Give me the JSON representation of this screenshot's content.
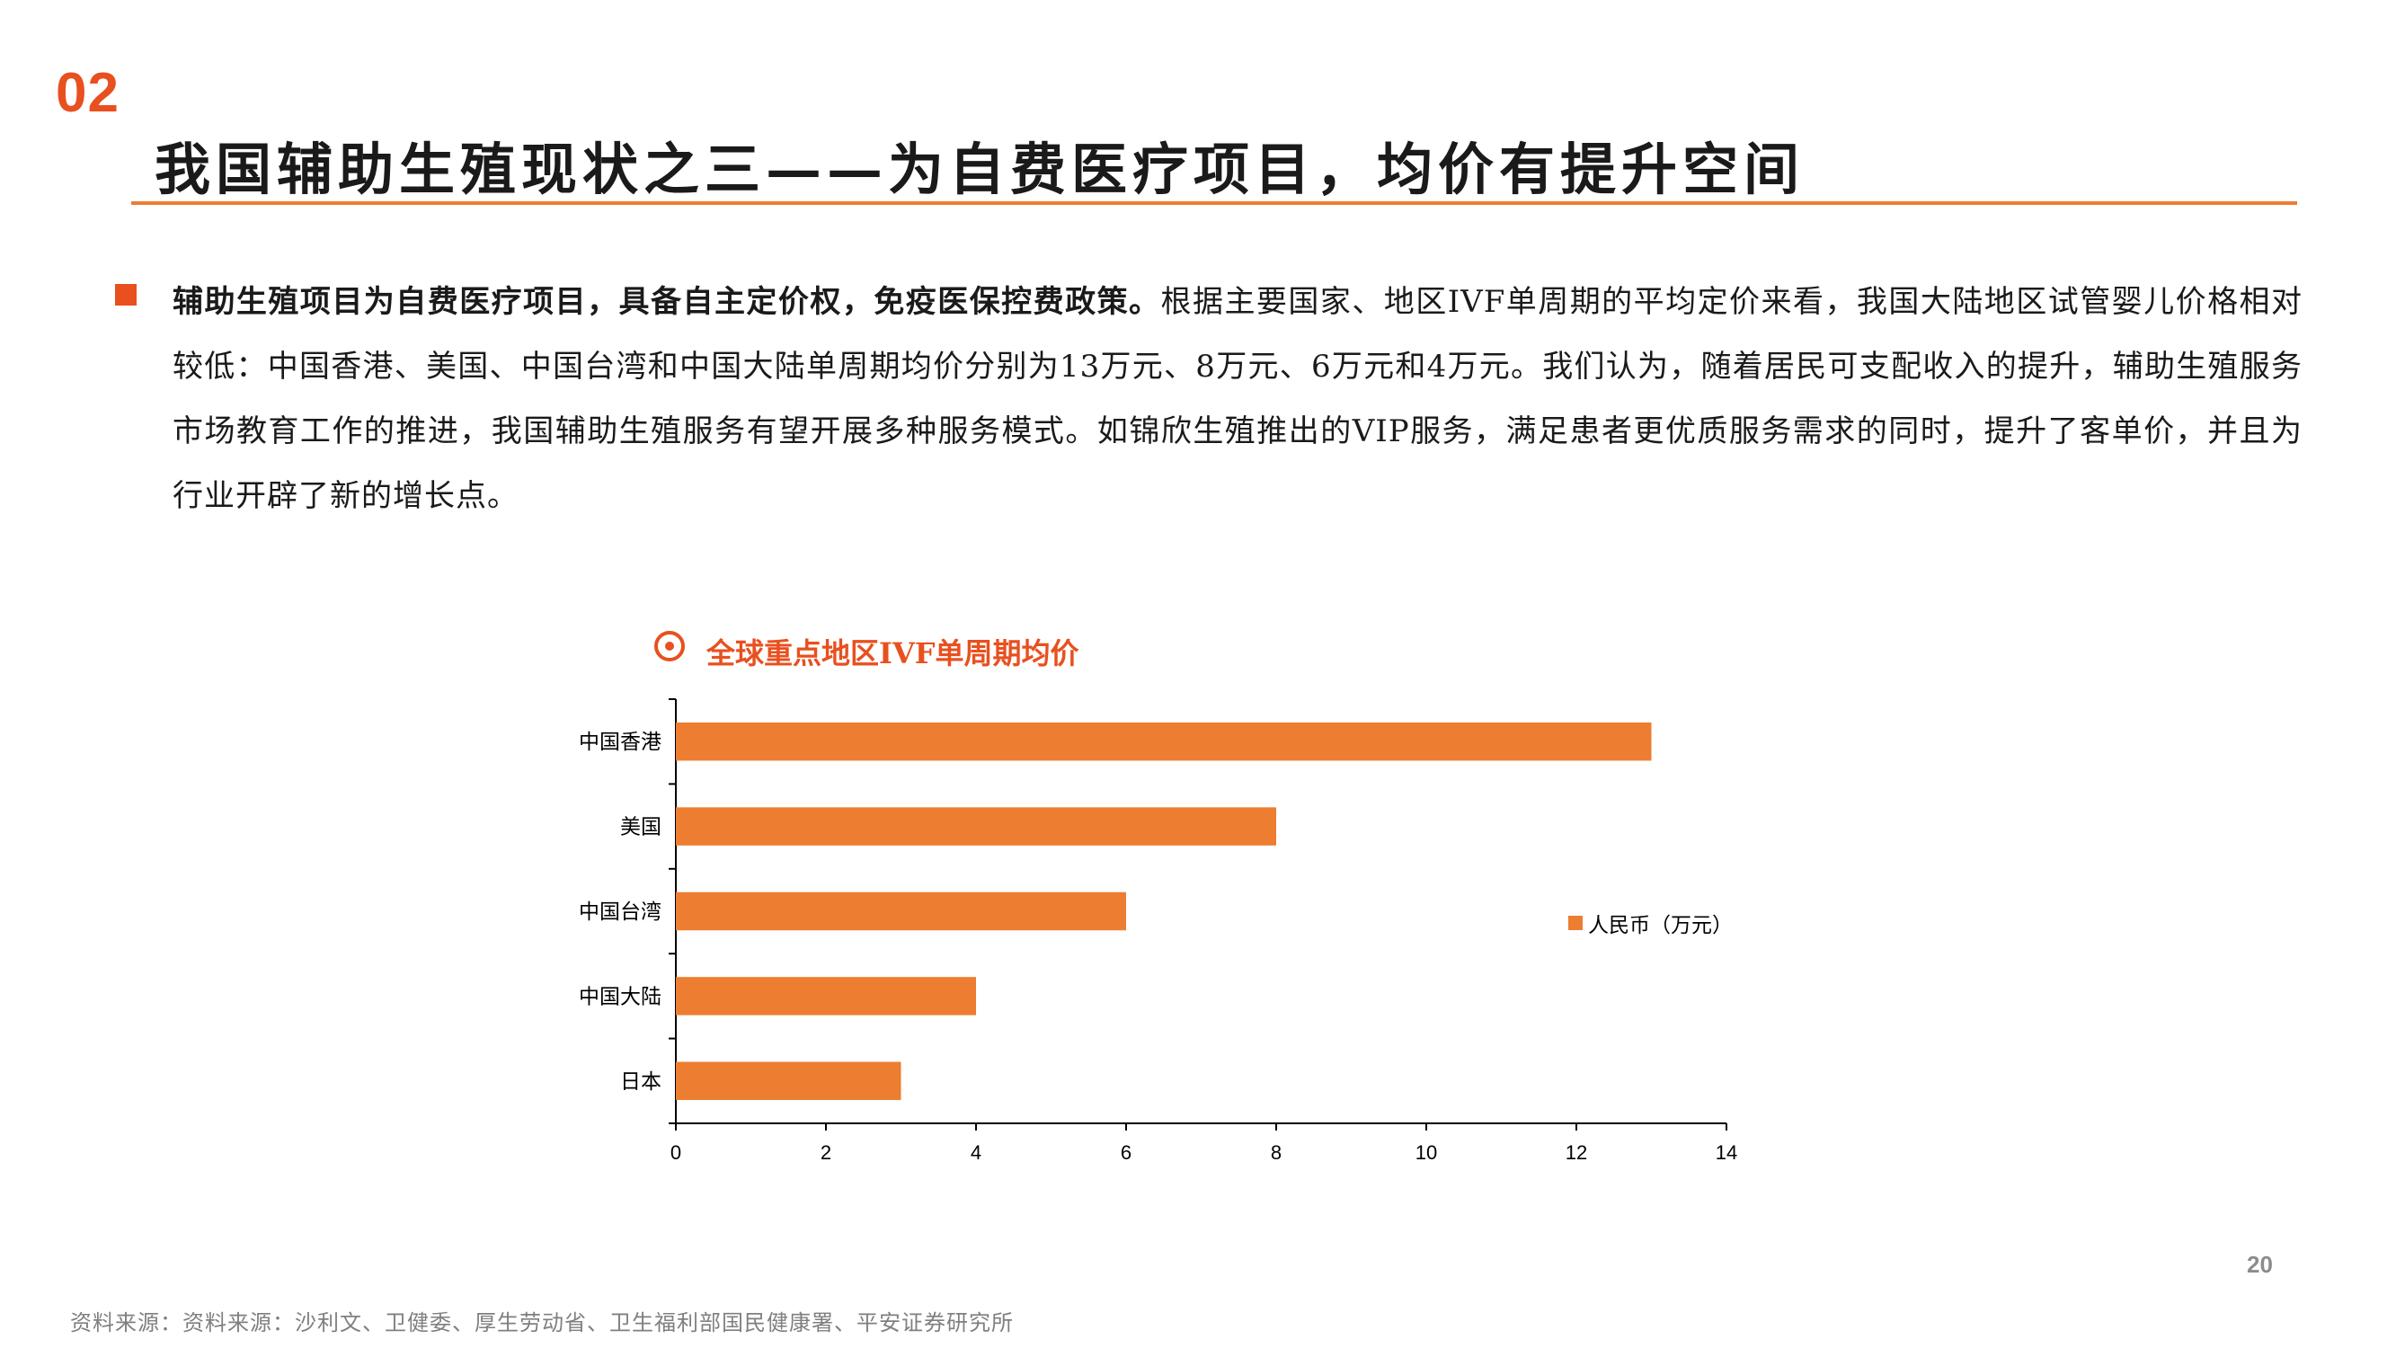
{
  "section_number": "02",
  "title": "我国辅助生殖现状之三——为自费医疗项目，均价有提升空间",
  "body": {
    "bold_lead": "辅助生殖项目为自费医疗项目，具备自主定价权，免疫医保控费政策。",
    "text": "根据主要国家、地区IVF单周期的平均定价来看，我国大陆地区试管婴儿价格相对较低：中国香港、美国、中国台湾和中国大陆单周期均价分别为13万元、8万元、6万元和4万元。我们认为，随着居民可支配收入的提升，辅助生殖服务市场教育工作的推进，我国辅助生殖服务有望开展多种服务模式。如锦欣生殖推出的VIP服务，满足患者更优质服务需求的同时，提升了客单价，并且为行业开辟了新的增长点。"
  },
  "chart_title": "全球重点地区IVF单周期均价",
  "chart_title_icon": "target-icon",
  "chart_data": {
    "type": "bar",
    "orientation": "horizontal",
    "categories": [
      "中国香港",
      "美国",
      "中国台湾",
      "中国大陆",
      "日本"
    ],
    "series": [
      {
        "name": "人民币（万元）",
        "values": [
          13,
          8,
          6,
          4,
          3
        ],
        "color": "#ed7d31"
      }
    ],
    "xlim": [
      0,
      14
    ],
    "xticks": [
      0,
      2,
      4,
      6,
      8,
      10,
      12,
      14
    ],
    "grid": false,
    "legend": "right"
  },
  "legend_label": "人民币（万元）",
  "page_number": "20",
  "source": "资料来源：资料来源：沙利文、卫健委、厚生劳动省、卫生福利部国民健康署、平安证券研究所",
  "colors": {
    "accent": "#e8501f",
    "bar": "#ed7d31"
  }
}
